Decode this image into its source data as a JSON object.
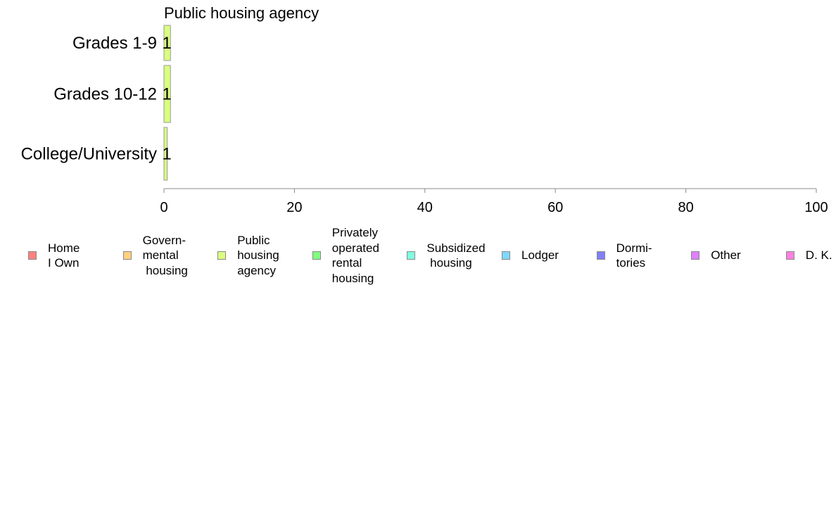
{
  "chart_data": {
    "type": "bar",
    "orientation": "horizontal",
    "title": "Public housing agency",
    "categories": [
      "Grades 1-9",
      "Grades 10-12",
      "College/University"
    ],
    "series": [
      {
        "name": "Public housing agency",
        "values": [
          1,
          1,
          0.5
        ],
        "labels": [
          "1",
          "1",
          "1"
        ],
        "color": "#d9ff80"
      }
    ],
    "xlim": [
      0,
      100
    ],
    "xticks": [
      0,
      20,
      40,
      60,
      80,
      100
    ],
    "xtick_labels": [
      "0",
      "20",
      "40",
      "60",
      "80",
      "100"
    ],
    "grid": false,
    "legend_position": "bottom"
  },
  "legend": [
    {
      "label": "Home\nI Own",
      "color": "#ff8080"
    },
    {
      "label": "Govern-\nmental\n housing",
      "color": "#ffd080"
    },
    {
      "label": "Public\nhousing\nagency",
      "color": "#d9ff80"
    },
    {
      "label": "Privately\noperated\nrental\nhousing",
      "color": "#80ff80"
    },
    {
      "label": "Subsidized\n housing",
      "color": "#80ffe0"
    },
    {
      "label": "Lodger",
      "color": "#80d8ff"
    },
    {
      "label": "Dormi-\ntories",
      "color": "#8080ff"
    },
    {
      "label": "Other",
      "color": "#e080ff"
    },
    {
      "label": "D. K.",
      "color": "#ff80e0"
    }
  ]
}
